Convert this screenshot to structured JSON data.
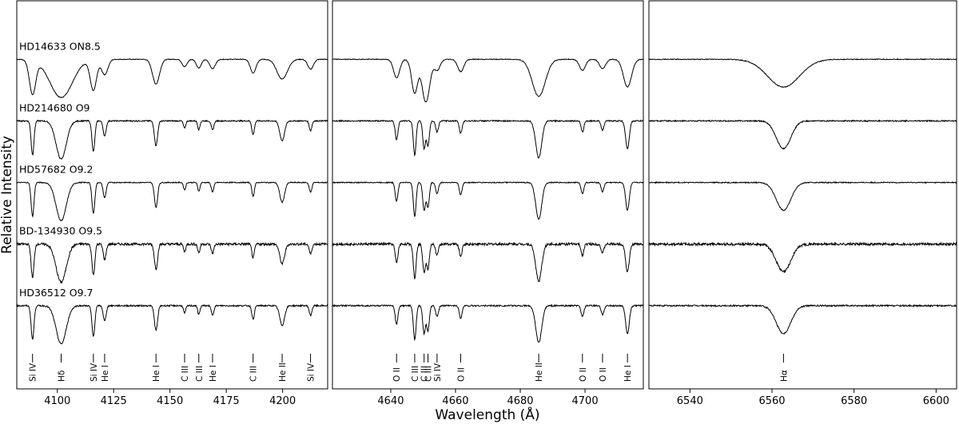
{
  "chart_data": {
    "type": "line",
    "xlabel": "Wavelength (Å)",
    "ylabel": "Relative Intensity",
    "panels": [
      {
        "xlim": [
          4082,
          4220
        ],
        "xticks": [
          4100,
          4125,
          4150,
          4175,
          4200
        ],
        "lines": [
          {
            "label": "Si IV",
            "x": 4089,
            "depth": 0.55,
            "w": 0.9
          },
          {
            "label": "Hδ",
            "x": 4101.7,
            "depth": 0.62,
            "w": 3.2
          },
          {
            "label": "Si IV",
            "x": 4116,
            "depth": 0.5,
            "w": 0.9
          },
          {
            "label": "He I",
            "x": 4121,
            "depth": 0.25,
            "w": 0.9
          },
          {
            "label": "He I",
            "x": 4143.8,
            "depth": 0.4,
            "w": 1.0
          },
          {
            "label": "C III",
            "x": 4156.5,
            "depth": 0.12,
            "w": 0.7
          },
          {
            "label": "C III",
            "x": 4162.8,
            "depth": 0.14,
            "w": 0.7
          },
          {
            "label": "He I",
            "x": 4168.9,
            "depth": 0.15,
            "w": 0.8
          },
          {
            "label": "C III",
            "x": 4186.9,
            "depth": 0.22,
            "w": 0.8
          },
          {
            "label": "He II",
            "x": 4199.8,
            "depth": 0.32,
            "w": 1.5
          },
          {
            "label": "Si IV",
            "x": 4212.4,
            "depth": 0.16,
            "w": 0.8
          }
        ]
      },
      {
        "xlim": [
          4622,
          4718
        ],
        "xticks": [
          4640,
          4660,
          4680,
          4700
        ],
        "lines": [
          {
            "label": "O II",
            "x": 4641.8,
            "depth": 0.3,
            "w": 0.6
          },
          {
            "label": "C III",
            "x": 4647.4,
            "depth": 0.55,
            "w": 0.6
          },
          {
            "label": "C III",
            "x": 4650.3,
            "depth": 0.45,
            "w": 0.6
          },
          {
            "label": "C III",
            "x": 4651.5,
            "depth": 0.4,
            "w": 0.6
          },
          {
            "label": "Si IV",
            "x": 4654.3,
            "depth": 0.18,
            "w": 0.6
          },
          {
            "label": "O II",
            "x": 4661.6,
            "depth": 0.2,
            "w": 0.6
          },
          {
            "label": "He II",
            "x": 4685.7,
            "depth": 0.6,
            "w": 1.3
          },
          {
            "label": "O II",
            "x": 4699.2,
            "depth": 0.18,
            "w": 0.6
          },
          {
            "label": "O II",
            "x": 4705.4,
            "depth": 0.15,
            "w": 0.6
          },
          {
            "label": "He I",
            "x": 4713.1,
            "depth": 0.45,
            "w": 0.8
          }
        ]
      },
      {
        "xlim": [
          6530,
          6605
        ],
        "xticks": [
          6540,
          6560,
          6580,
          6600
        ],
        "lines": [
          {
            "label": "Hα",
            "x": 6562.8,
            "depth": 0.45,
            "w": 2.5
          }
        ]
      }
    ],
    "series": [
      {
        "name": "HD14633 ON8.5",
        "offset": 4.0,
        "noise": 0.006
      },
      {
        "name": "HD214680 O9",
        "offset": 3.0,
        "noise": 0.01
      },
      {
        "name": "HD57682 O9.2",
        "offset": 2.0,
        "noise": 0.008
      },
      {
        "name": "BD-134930 O9.5",
        "offset": 1.0,
        "noise": 0.02
      },
      {
        "name": "HD36512 O9.7",
        "offset": 0.0,
        "noise": 0.012
      }
    ]
  }
}
